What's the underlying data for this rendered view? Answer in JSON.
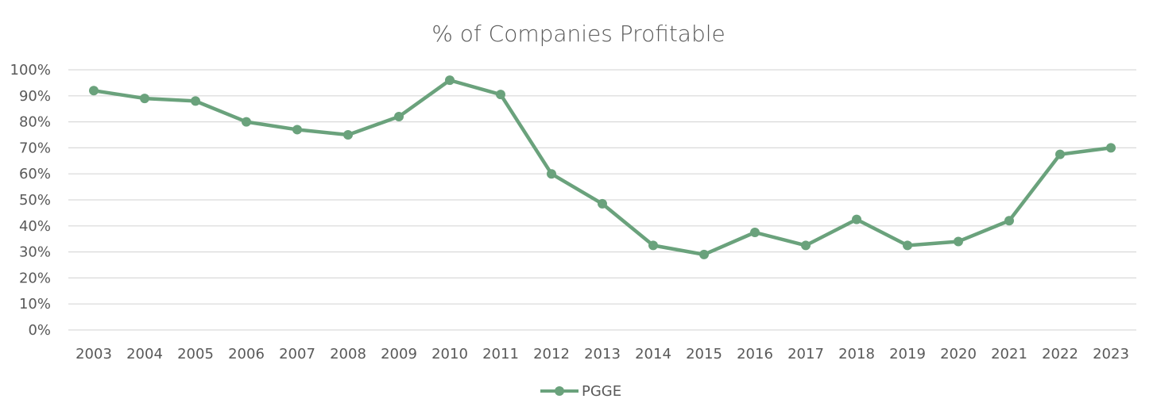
{
  "chart_data": {
    "type": "line",
    "title": "% of Companies Profitable",
    "xlabel": "",
    "ylabel": "",
    "ylim": [
      0,
      100
    ],
    "ytick_step": 10,
    "ytick_suffix": "%",
    "grid": true,
    "legend_position": "bottom-center",
    "categories": [
      "2003",
      "2004",
      "2005",
      "2006",
      "2007",
      "2008",
      "2009",
      "2010",
      "2011",
      "2012",
      "2013",
      "2014",
      "2015",
      "2016",
      "2017",
      "2018",
      "2019",
      "2020",
      "2021",
      "2022",
      "2023"
    ],
    "series": [
      {
        "name": "PGGE",
        "color": "#6aa27c",
        "values": [
          92,
          89,
          88,
          80,
          77,
          75,
          82,
          96,
          90.5,
          60,
          48.5,
          32.5,
          29,
          37.5,
          32.5,
          42.5,
          32.5,
          34,
          42,
          67.5,
          70
        ]
      }
    ]
  }
}
